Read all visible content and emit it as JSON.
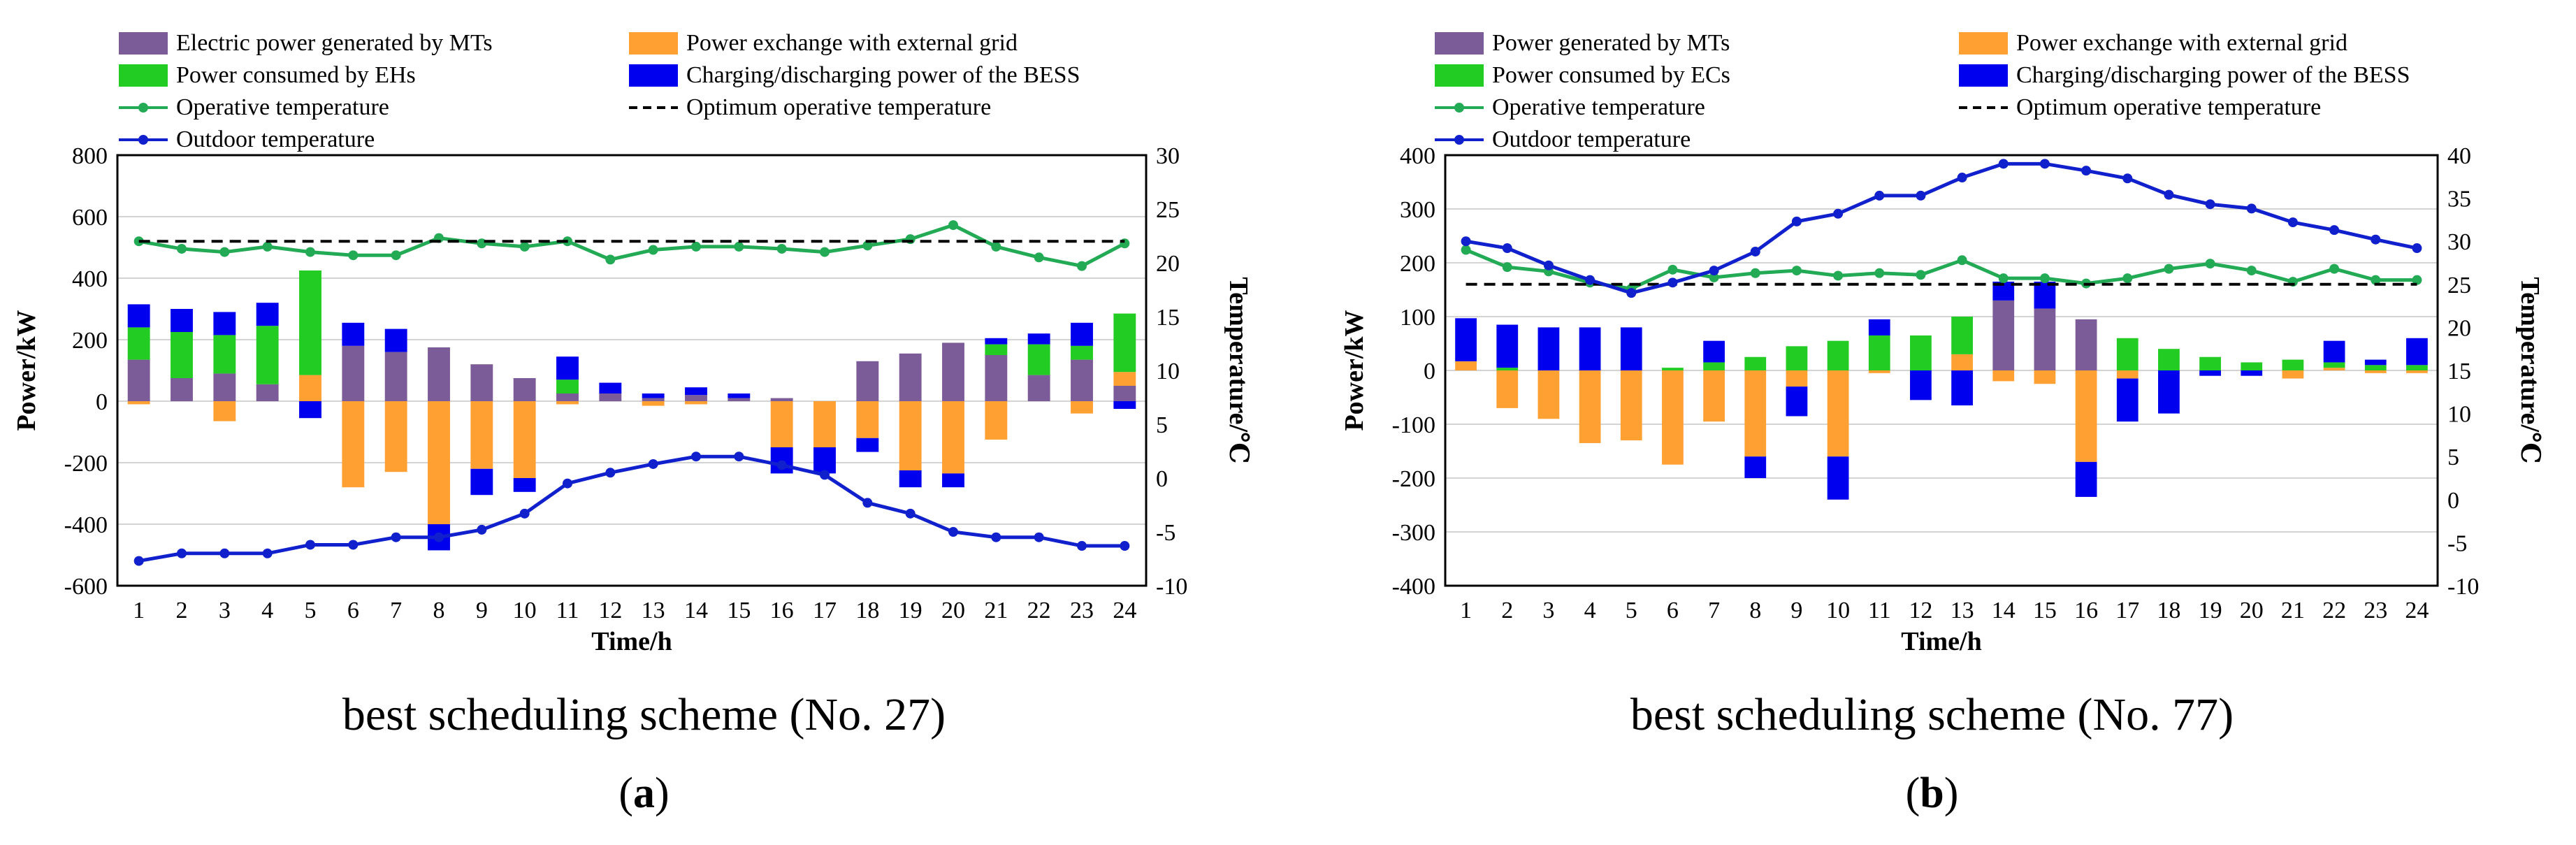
{
  "chart_data": [
    {
      "type": "bar",
      "panel_label": "a",
      "subtitle": "best scheduling scheme (No. 27)",
      "xlabel": "Time/h",
      "ylabel": "Power/kW",
      "y2label": "Temperature/℃",
      "ylim": [
        -600,
        800
      ],
      "yticks": [
        -600,
        -400,
        -200,
        0,
        200,
        400,
        600,
        800
      ],
      "y2lim": [
        -10,
        30
      ],
      "y2ticks": [
        -10,
        -5,
        0,
        5,
        10,
        15,
        20,
        25,
        30
      ],
      "categories": [
        "1",
        "2",
        "3",
        "4",
        "5",
        "6",
        "7",
        "8",
        "9",
        "10",
        "11",
        "12",
        "13",
        "14",
        "15",
        "16",
        "17",
        "18",
        "19",
        "20",
        "21",
        "22",
        "23",
        "24"
      ],
      "grid": true,
      "legend_position": "top",
      "series": [
        {
          "name": "Electric power generated by MTs",
          "kind": "bar",
          "color": "#7b5c99",
          "values": [
            135,
            75,
            90,
            55,
            0,
            180,
            160,
            175,
            120,
            75,
            25,
            25,
            10,
            20,
            10,
            10,
            0,
            130,
            155,
            190,
            150,
            85,
            135,
            50
          ]
        },
        {
          "name": "Power exchange with external grid",
          "kind": "bar",
          "color": "#ffa033",
          "values": [
            -10,
            0,
            -65,
            0,
            85,
            -280,
            -230,
            -400,
            -220,
            -250,
            -10,
            0,
            -15,
            -10,
            0,
            -150,
            -150,
            -120,
            -225,
            -235,
            -125,
            0,
            -40,
            45
          ]
        },
        {
          "name": "Power consumed by EHs",
          "kind": "bar",
          "color": "#22cc22",
          "values": [
            105,
            150,
            125,
            190,
            340,
            0,
            0,
            0,
            0,
            0,
            45,
            0,
            0,
            0,
            0,
            0,
            0,
            0,
            0,
            0,
            35,
            100,
            45,
            190
          ]
        },
        {
          "name": "Charging/discharging power of the BESS",
          "kind": "bar",
          "color": "#0000ee",
          "values": [
            75,
            75,
            75,
            75,
            -55,
            75,
            75,
            -85,
            -85,
            -45,
            75,
            35,
            15,
            25,
            15,
            -85,
            -85,
            -45,
            -55,
            -45,
            20,
            35,
            75,
            -25
          ]
        },
        {
          "name": "Operative temperature",
          "kind": "line",
          "color": "#22aa55",
          "axis": "right",
          "values": [
            22,
            21.3,
            21,
            21.5,
            21,
            20.7,
            20.7,
            22.3,
            21.8,
            21.5,
            22,
            20.3,
            21.2,
            21.5,
            21.5,
            21.3,
            21,
            21.6,
            22.2,
            23.5,
            21.5,
            20.5,
            19.7,
            21.8
          ]
        },
        {
          "name": "Optimum operative temperature",
          "kind": "dashed",
          "color": "#000000",
          "axis": "right",
          "values": [
            22,
            22,
            22,
            22,
            22,
            22,
            22,
            22,
            22,
            22,
            22,
            22,
            22,
            22,
            22,
            22,
            22,
            22,
            22,
            22,
            22,
            22,
            22,
            22
          ]
        },
        {
          "name": "Outdoor temperature",
          "kind": "line",
          "color": "#1020cc",
          "axis": "right",
          "values": [
            -7.7,
            -7,
            -7,
            -7,
            -6.2,
            -6.2,
            -5.5,
            -5.5,
            -4.8,
            -3.3,
            -0.5,
            0.5,
            1.3,
            2,
            2,
            1.2,
            0.3,
            -2.3,
            -3.3,
            -5,
            -5.5,
            -5.5,
            -6.3,
            -6.3
          ]
        }
      ]
    },
    {
      "type": "bar",
      "panel_label": "b",
      "subtitle": "best scheduling scheme (No. 77)",
      "xlabel": "Time/h",
      "ylabel": "Power/kW",
      "y2label": "Temperature/℃",
      "ylim": [
        -400,
        400
      ],
      "yticks": [
        -400,
        -300,
        -200,
        -100,
        0,
        100,
        200,
        300,
        400
      ],
      "y2lim": [
        -10,
        40
      ],
      "y2ticks": [
        -10,
        -5,
        0,
        5,
        10,
        15,
        20,
        25,
        30,
        35,
        40
      ],
      "categories": [
        "1",
        "2",
        "3",
        "4",
        "5",
        "6",
        "7",
        "8",
        "9",
        "10",
        "11",
        "12",
        "13",
        "14",
        "15",
        "16",
        "17",
        "18",
        "19",
        "20",
        "21",
        "22",
        "23",
        "24"
      ],
      "grid": true,
      "legend_position": "top",
      "series": [
        {
          "name": "Power generated by MTs",
          "kind": "bar",
          "color": "#7b5c99",
          "values": [
            0,
            0,
            0,
            0,
            0,
            0,
            0,
            0,
            0,
            0,
            0,
            0,
            0,
            130,
            115,
            95,
            0,
            0,
            0,
            0,
            0,
            0,
            0,
            0
          ]
        },
        {
          "name": "Power exchange with external grid",
          "kind": "bar",
          "color": "#ffa033",
          "values": [
            17,
            -70,
            -90,
            -135,
            -130,
            -175,
            -95,
            -160,
            -30,
            -160,
            -5,
            0,
            30,
            -20,
            -25,
            -170,
            -15,
            0,
            0,
            0,
            -15,
            5,
            -5,
            -5
          ]
        },
        {
          "name": "Power consumed by ECs",
          "kind": "bar",
          "color": "#22cc22",
          "values": [
            0,
            5,
            0,
            0,
            0,
            5,
            15,
            25,
            45,
            55,
            65,
            65,
            70,
            0,
            0,
            0,
            60,
            40,
            25,
            15,
            20,
            10,
            10,
            10
          ]
        },
        {
          "name": "Charging/discharging power of the BESS",
          "kind": "bar",
          "color": "#0000ee",
          "values": [
            80,
            80,
            80,
            80,
            80,
            0,
            40,
            -40,
            -55,
            -80,
            30,
            -55,
            -65,
            35,
            50,
            -65,
            -80,
            -80,
            -10,
            -10,
            0,
            40,
            10,
            50
          ]
        },
        {
          "name": "Operative temperature",
          "kind": "line",
          "color": "#22aa55",
          "axis": "right",
          "values": [
            29,
            27,
            26.5,
            25.2,
            24.5,
            26.7,
            25.8,
            26.3,
            26.6,
            26,
            26.3,
            26.1,
            27.8,
            25.7,
            25.7,
            25.1,
            25.7,
            26.8,
            27.4,
            26.6,
            25.3,
            26.8,
            25.5,
            25.5
          ]
        },
        {
          "name": "Optimum operative temperature",
          "kind": "dashed",
          "color": "#000000",
          "axis": "right",
          "values": [
            25,
            25,
            25,
            25,
            25,
            25,
            25,
            25,
            25,
            25,
            25,
            25,
            25,
            25,
            25,
            25,
            25,
            25,
            25,
            25,
            25,
            25,
            25,
            25
          ]
        },
        {
          "name": "Outdoor temperature",
          "kind": "line",
          "color": "#1020cc",
          "axis": "right",
          "values": [
            30,
            29.2,
            27.2,
            25.5,
            24,
            25.2,
            26.6,
            28.8,
            32.3,
            33.2,
            35.3,
            35.3,
            37.4,
            39,
            39,
            38.2,
            37.3,
            35.4,
            34.3,
            33.8,
            32.2,
            31.3,
            30.2,
            29.2
          ]
        }
      ]
    }
  ]
}
